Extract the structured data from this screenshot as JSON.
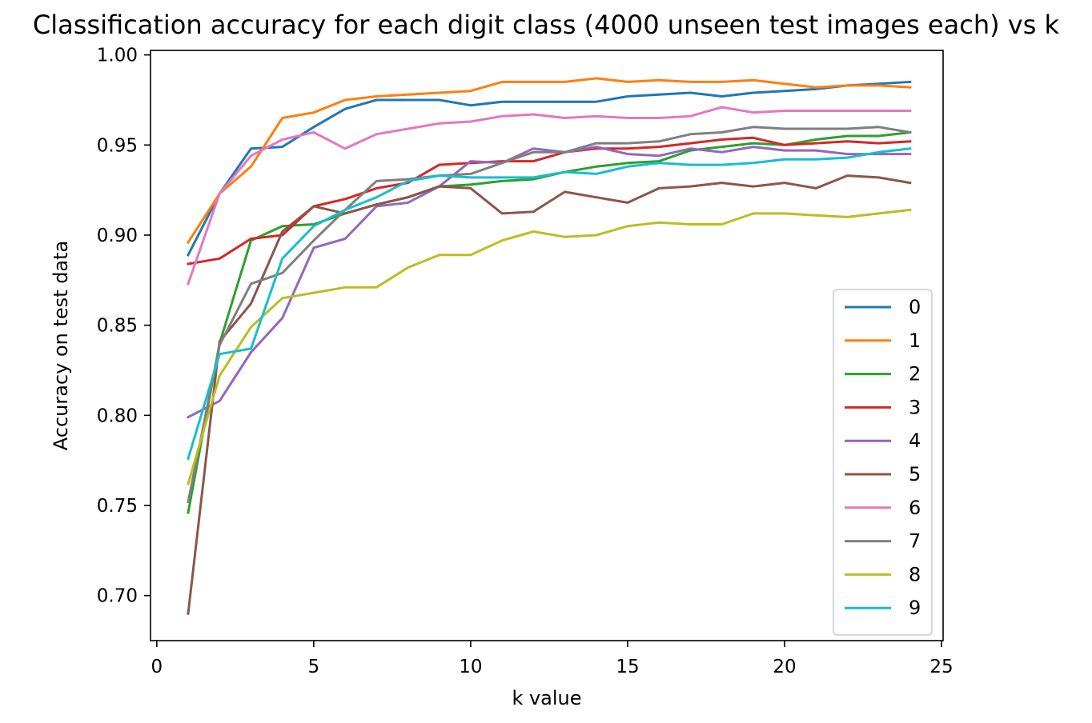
{
  "chart_data": {
    "type": "line",
    "title": "Classification accuracy for each digit class (4000 unseen test images each) vs k",
    "xlabel": "k value",
    "ylabel": "Accuracy on test data",
    "xlim": [
      -0.2,
      25.05
    ],
    "ylim": [
      0.675,
      1.0025
    ],
    "xticks": [
      0,
      5,
      10,
      15,
      20,
      25
    ],
    "xtick_labels": [
      "0",
      "5",
      "10",
      "15",
      "20",
      "25"
    ],
    "yticks": [
      0.7,
      0.75,
      0.8,
      0.85,
      0.9,
      0.95,
      1.0
    ],
    "ytick_labels": [
      "0.70",
      "0.75",
      "0.80",
      "0.85",
      "0.90",
      "0.95",
      "1.00"
    ],
    "grid": false,
    "legend_position": "lower-right",
    "x": [
      1,
      2,
      3,
      4,
      5,
      6,
      7,
      8,
      9,
      10,
      11,
      12,
      13,
      14,
      15,
      16,
      17,
      18,
      19,
      20,
      21,
      22,
      23,
      24
    ],
    "series": [
      {
        "name": "0",
        "color": "#1f77b4",
        "values": [
          0.889,
          0.923,
          0.948,
          0.949,
          0.96,
          0.97,
          0.975,
          0.975,
          0.975,
          0.972,
          0.974,
          0.974,
          0.974,
          0.974,
          0.977,
          0.978,
          0.979,
          0.977,
          0.979,
          0.98,
          0.981,
          0.983,
          0.984,
          0.985
        ]
      },
      {
        "name": "1",
        "color": "#ff7f0e",
        "values": [
          0.896,
          0.923,
          0.938,
          0.965,
          0.968,
          0.975,
          0.977,
          0.978,
          0.979,
          0.98,
          0.985,
          0.985,
          0.985,
          0.987,
          0.985,
          0.986,
          0.985,
          0.985,
          0.986,
          0.984,
          0.982,
          0.983,
          0.983,
          0.982
        ]
      },
      {
        "name": "2",
        "color": "#2ca02c",
        "values": [
          0.746,
          0.84,
          0.897,
          0.905,
          0.906,
          0.912,
          0.917,
          0.921,
          0.927,
          0.928,
          0.93,
          0.931,
          0.935,
          0.938,
          0.94,
          0.941,
          0.947,
          0.949,
          0.951,
          0.95,
          0.953,
          0.955,
          0.955,
          0.957
        ]
      },
      {
        "name": "3",
        "color": "#d62728",
        "values": [
          0.884,
          0.887,
          0.898,
          0.9,
          0.916,
          0.92,
          0.926,
          0.929,
          0.939,
          0.94,
          0.941,
          0.941,
          0.946,
          0.948,
          0.948,
          0.949,
          0.951,
          0.953,
          0.954,
          0.95,
          0.951,
          0.952,
          0.951,
          0.952
        ]
      },
      {
        "name": "4",
        "color": "#9467bd",
        "values": [
          0.799,
          0.808,
          0.835,
          0.854,
          0.893,
          0.898,
          0.916,
          0.918,
          0.927,
          0.941,
          0.94,
          0.948,
          0.946,
          0.949,
          0.945,
          0.944,
          0.948,
          0.946,
          0.949,
          0.947,
          0.947,
          0.945,
          0.945,
          0.945
        ]
      },
      {
        "name": "5",
        "color": "#8c564b",
        "values": [
          0.69,
          0.841,
          0.862,
          0.902,
          0.916,
          0.912,
          0.917,
          0.921,
          0.927,
          0.926,
          0.912,
          0.913,
          0.924,
          0.921,
          0.918,
          0.926,
          0.927,
          0.929,
          0.927,
          0.929,
          0.926,
          0.933,
          0.932,
          0.929
        ]
      },
      {
        "name": "6",
        "color": "#e377c2",
        "values": [
          0.873,
          0.923,
          0.944,
          0.953,
          0.957,
          0.948,
          0.956,
          0.959,
          0.962,
          0.963,
          0.966,
          0.967,
          0.965,
          0.966,
          0.965,
          0.965,
          0.966,
          0.971,
          0.968,
          0.969,
          0.969,
          0.969,
          0.969,
          0.969
        ]
      },
      {
        "name": "7",
        "color": "#7f7f7f",
        "values": [
          0.752,
          0.839,
          0.873,
          0.879,
          0.897,
          0.914,
          0.93,
          0.931,
          0.933,
          0.934,
          0.94,
          0.946,
          0.946,
          0.951,
          0.951,
          0.952,
          0.956,
          0.957,
          0.96,
          0.959,
          0.959,
          0.959,
          0.96,
          0.957
        ]
      },
      {
        "name": "8",
        "color": "#bcbd22",
        "values": [
          0.762,
          0.822,
          0.849,
          0.865,
          0.868,
          0.871,
          0.871,
          0.882,
          0.889,
          0.889,
          0.897,
          0.902,
          0.899,
          0.9,
          0.905,
          0.907,
          0.906,
          0.906,
          0.912,
          0.912,
          0.911,
          0.91,
          0.912,
          0.914
        ]
      },
      {
        "name": "9",
        "color": "#17becf",
        "values": [
          0.776,
          0.834,
          0.837,
          0.887,
          0.905,
          0.914,
          0.921,
          0.93,
          0.933,
          0.932,
          0.932,
          0.932,
          0.935,
          0.934,
          0.938,
          0.94,
          0.939,
          0.939,
          0.94,
          0.942,
          0.942,
          0.943,
          0.946,
          0.948
        ]
      }
    ]
  }
}
